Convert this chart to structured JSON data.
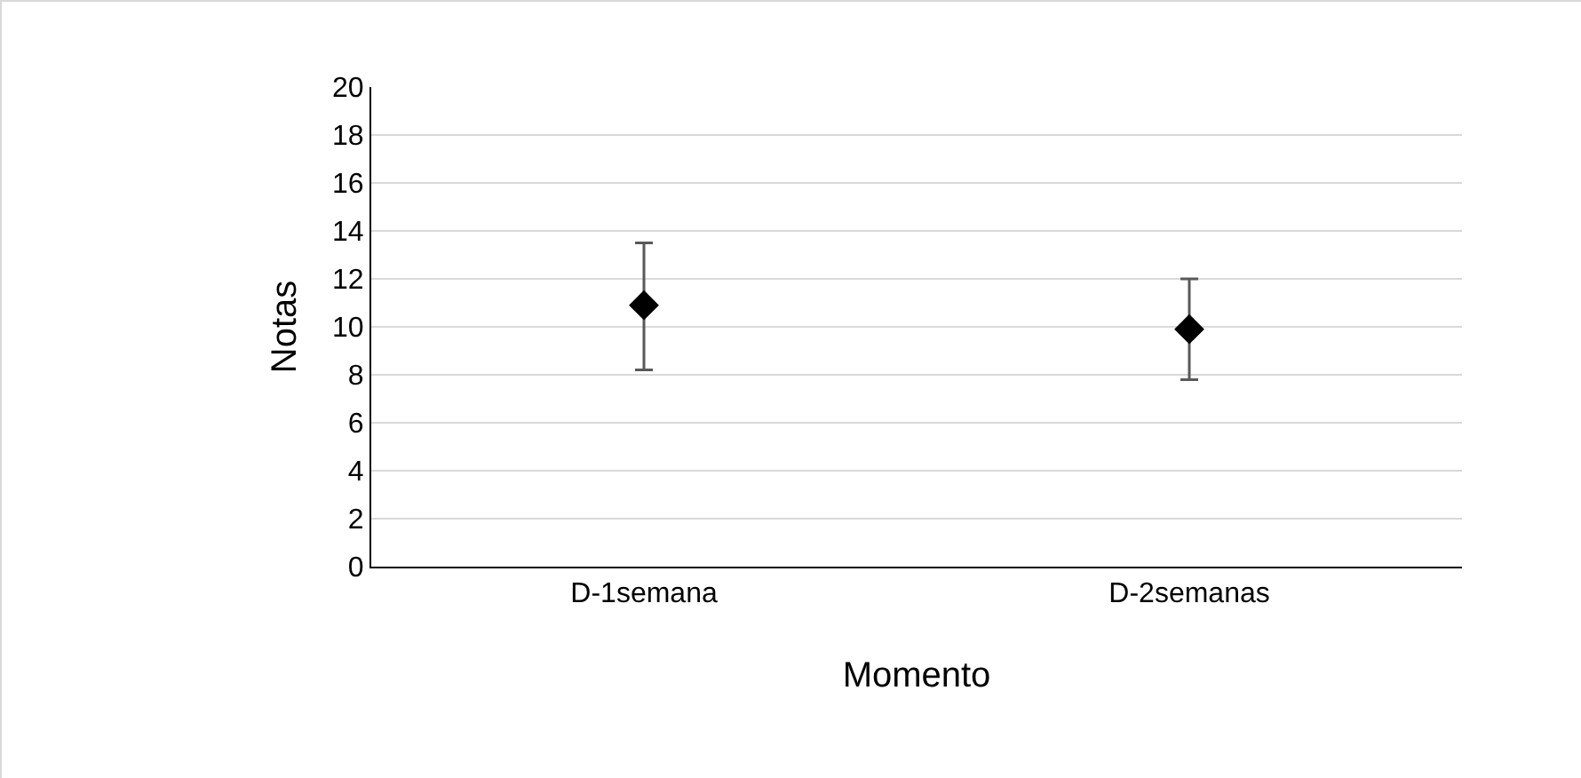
{
  "chart_data": {
    "type": "scatter",
    "xlabel": "Momento",
    "ylabel": "Notas",
    "categories": [
      "D-1semana",
      "D-2semanas"
    ],
    "series": [
      {
        "color": "#000000",
        "values": [
          10.9,
          9.9
        ],
        "errors": [
          [
            8.2,
            13.5
          ],
          [
            7.8,
            12.0
          ]
        ]
      }
    ],
    "ylim": [
      0,
      20
    ],
    "yticks": [
      0,
      2,
      4,
      6,
      8,
      10,
      12,
      14,
      16,
      18,
      20
    ],
    "grid": "y",
    "legend": false,
    "marker": "diamond"
  }
}
